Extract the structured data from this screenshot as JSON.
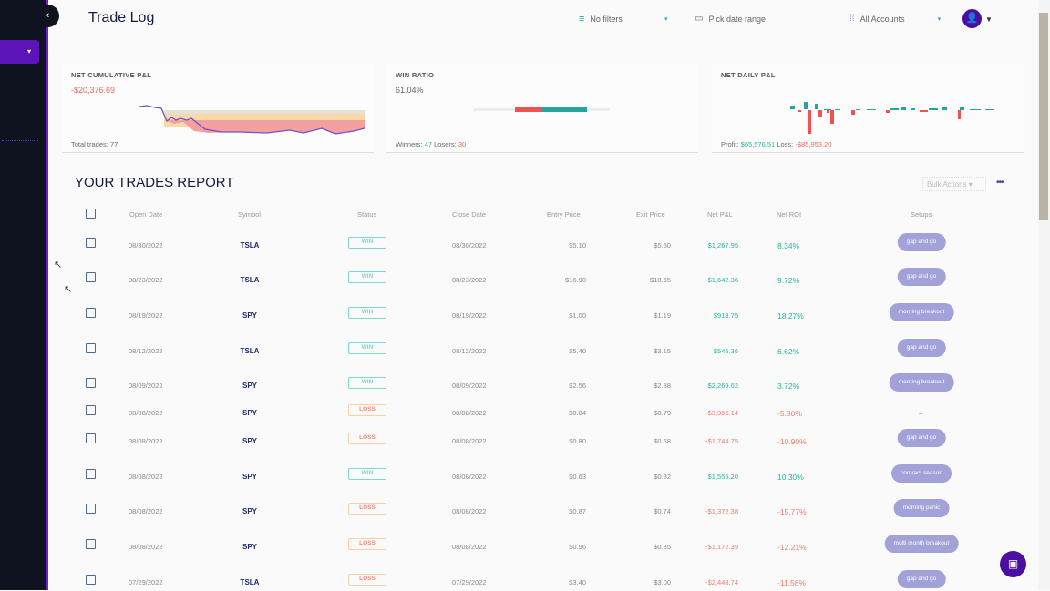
{
  "header": {
    "title": "Trade Log",
    "filters": "No filters",
    "date_range": "Pick date range",
    "accounts": "All Accounts"
  },
  "cards": {
    "cumulative": {
      "title": "NET CUMULATIVE P&L",
      "value": "-$20,376.69",
      "footer_label": "Total trades:",
      "total_trades": "77"
    },
    "win_ratio": {
      "title": "WIN RATIO",
      "value": "61.04%",
      "winners_label": "Winners:",
      "winners": "47",
      "losers_label": "Losers:",
      "losers": "30"
    },
    "daily": {
      "title": "NET DAILY P&L",
      "profit_label": "Profit:",
      "profit": "$65,576.51",
      "loss_label": "Loss:",
      "loss": "-$85,953.20"
    }
  },
  "report": {
    "title": "YOUR TRADES REPORT",
    "bulk_actions": "Bulk Actions",
    "more": "•••"
  },
  "columns": [
    "Open Date",
    "Symbol",
    "Status",
    "Close Date",
    "Entry Price",
    "Exit Price",
    "Net P&L",
    "Net ROI",
    "Setups"
  ],
  "rows": [
    {
      "open": "08/30/2022",
      "symbol": "TSLA",
      "status": "WIN",
      "close": "08/30/2022",
      "entry": "$5.10",
      "exit": "$5.50",
      "pnl": "$1,267.95",
      "roi": "8.34%",
      "setup": "gap and go"
    },
    {
      "open": "08/23/2022",
      "symbol": "TSLA",
      "status": "WIN",
      "close": "08/23/2022",
      "entry": "$16.90",
      "exit": "$18.65",
      "pnl": "$1,642.36",
      "roi": "9.72%",
      "setup": "gap and go"
    },
    {
      "open": "08/19/2022",
      "symbol": "SPY",
      "status": "WIN",
      "close": "08/19/2022",
      "entry": "$1.00",
      "exit": "$1.19",
      "pnl": "$913.75",
      "roi": "18.27%",
      "setup": "morning breakout"
    },
    {
      "open": "08/12/2022",
      "symbol": "TSLA",
      "status": "WIN",
      "close": "08/12/2022",
      "entry": "$5.40",
      "exit": "$3.15",
      "pnl": "$545.36",
      "roi": "6.62%",
      "setup": "gap and go"
    },
    {
      "open": "08/09/2022",
      "symbol": "SPY",
      "status": "WIN",
      "close": "08/09/2022",
      "entry": "$2.56",
      "exit": "$2.88",
      "pnl": "$2,269.62",
      "roi": "3.72%",
      "setup": "morning breakout"
    },
    {
      "open": "08/08/2022",
      "symbol": "SPY",
      "status": "LOSS",
      "close": "08/08/2022",
      "entry": "$0.84",
      "exit": "$0.79",
      "pnl": "-$3,966.14",
      "roi": "-5.80%",
      "setup": "–"
    },
    {
      "open": "08/08/2022",
      "symbol": "SPY",
      "status": "LOSS",
      "close": "08/08/2022",
      "entry": "$0.80",
      "exit": "$0.68",
      "pnl": "-$1,744.75",
      "roi": "-10.90%",
      "setup": "gap and go"
    },
    {
      "open": "08/08/2022",
      "symbol": "SPY",
      "status": "WIN",
      "close": "08/08/2022",
      "entry": "$0.63",
      "exit": "$0.82",
      "pnl": "$1,555.20",
      "roi": "10.30%",
      "setup": "contract season"
    },
    {
      "open": "08/08/2022",
      "symbol": "SPY",
      "status": "LOSS",
      "close": "08/08/2022",
      "entry": "$0.87",
      "exit": "$0.74",
      "pnl": "-$1,372.38",
      "roi": "-15.77%",
      "setup": "morning panic"
    },
    {
      "open": "08/08/2022",
      "symbol": "SPY",
      "status": "LOSS",
      "close": "08/08/2022",
      "entry": "$0.96",
      "exit": "$0.85",
      "pnl": "-$1,172.39",
      "roi": "-12.21%",
      "setup": "multi month breakout"
    },
    {
      "open": "07/29/2022",
      "symbol": "TSLA",
      "status": "LOSS",
      "close": "07/29/2022",
      "entry": "$3.40",
      "exit": "$3.00",
      "pnl": "-$2,443.74",
      "roi": "-11.58%",
      "setup": "gap and go"
    }
  ],
  "colors": {
    "accent": "#4a0fa0",
    "win": "#26b5a0",
    "loss": "#ef6a5a",
    "setup": "#a3a2d8"
  }
}
